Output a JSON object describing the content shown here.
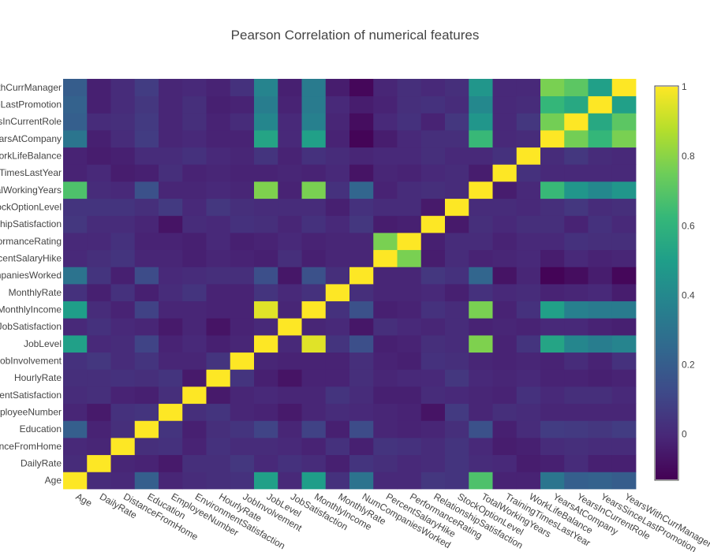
{
  "chart_data": {
    "type": "heatmap",
    "title": "Pearson Correlation of numerical features",
    "xlabel": "",
    "ylabel": "",
    "colorscale": "viridis",
    "zmin": -0.13,
    "zmax": 1,
    "colorbar_ticks": [
      0,
      0.2,
      0.4,
      0.6,
      0.8,
      1
    ],
    "colorbar_tick_labels": [
      "0",
      "0.2",
      "0.4",
      "0.6",
      "0.8",
      "1"
    ],
    "features": [
      "Age",
      "DailyRate",
      "DistanceFromHome",
      "Education",
      "EmployeeNumber",
      "EnvironmentSatisfaction",
      "HourlyRate",
      "JobInvolvement",
      "JobLevel",
      "JobSatisfaction",
      "MonthlyIncome",
      "MonthlyRate",
      "NumCompaniesWorked",
      "PercentSalaryHike",
      "PerformanceRating",
      "RelationshipSatisfaction",
      "StockOptionLevel",
      "TotalWorkingYears",
      "TrainingTimesLastYear",
      "WorkLifeBalance",
      "YearsAtCompany",
      "YearsInCurrentRole",
      "YearsSinceLastPromotion",
      "YearsWithCurrManager"
    ],
    "y_tick_labels": [
      "Age",
      "DailyRate",
      "DistanceFromHome",
      "Education",
      "EmployeeNumber",
      "EnvironmentSatisfaction",
      "HourlyRate",
      "JobInvolvement",
      "JobLevel",
      "JobSatisfaction",
      "MonthlyIncome",
      "MonthlyRate",
      "NumCompaniesWorked",
      "PercentSalaryHike",
      "PerformanceRating",
      "RelationshipSatisfaction",
      "StockOptionLevel",
      "TotalWorkingYears",
      "TrainingTimesLastYear",
      "WorkLifeBalance",
      "YearsAtCompany",
      "YearsInCurrentRole",
      "YearsSinceLastPromotion",
      "YearsWithCurrManager"
    ],
    "z": [
      [
        1.0,
        0.01,
        0.0,
        0.21,
        -0.01,
        0.01,
        0.02,
        0.03,
        0.51,
        0.0,
        0.5,
        0.03,
        0.3,
        0.0,
        0.0,
        0.05,
        0.04,
        0.68,
        -0.02,
        -0.02,
        0.31,
        0.21,
        0.22,
        0.2
      ],
      [
        0.01,
        1.0,
        -0.01,
        -0.02,
        -0.05,
        0.02,
        0.02,
        0.05,
        0.0,
        0.03,
        0.01,
        -0.03,
        0.04,
        0.02,
        0.0,
        0.01,
        0.04,
        0.01,
        0.0,
        -0.04,
        -0.03,
        0.01,
        -0.03,
        -0.03
      ],
      [
        0.0,
        -0.01,
        1.0,
        0.02,
        0.03,
        -0.02,
        0.03,
        0.01,
        0.01,
        0.0,
        -0.02,
        0.03,
        -0.03,
        0.04,
        0.03,
        0.01,
        0.04,
        0.0,
        -0.04,
        -0.03,
        0.01,
        0.02,
        0.01,
        0.01
      ],
      [
        0.21,
        -0.02,
        0.02,
        1.0,
        0.04,
        -0.03,
        0.02,
        0.04,
        0.1,
        -0.01,
        0.09,
        -0.03,
        0.13,
        -0.01,
        -0.02,
        -0.01,
        0.02,
        0.15,
        -0.03,
        0.01,
        0.07,
        0.06,
        0.05,
        0.07
      ],
      [
        -0.01,
        -0.05,
        0.03,
        0.04,
        1.0,
        0.02,
        0.04,
        -0.01,
        -0.02,
        -0.05,
        -0.01,
        0.01,
        0.0,
        -0.01,
        -0.02,
        -0.07,
        0.06,
        -0.01,
        0.02,
        0.01,
        -0.01,
        -0.01,
        -0.01,
        -0.01
      ],
      [
        0.01,
        0.02,
        -0.02,
        -0.03,
        0.02,
        1.0,
        -0.05,
        -0.01,
        0.0,
        -0.01,
        -0.01,
        0.04,
        0.01,
        -0.03,
        -0.03,
        0.01,
        0.0,
        -0.01,
        -0.02,
        0.03,
        0.0,
        0.02,
        0.02,
        0.0
      ],
      [
        0.02,
        0.02,
        0.03,
        0.02,
        0.04,
        -0.05,
        1.0,
        0.04,
        -0.03,
        -0.07,
        -0.02,
        -0.02,
        0.02,
        -0.01,
        0.0,
        0.0,
        0.05,
        0.0,
        -0.01,
        0.0,
        -0.02,
        -0.02,
        -0.03,
        -0.02
      ],
      [
        0.03,
        0.05,
        0.01,
        0.04,
        -0.01,
        -0.01,
        0.04,
        1.0,
        -0.01,
        -0.02,
        -0.02,
        -0.02,
        0.02,
        -0.02,
        -0.03,
        0.03,
        0.02,
        -0.01,
        -0.02,
        -0.01,
        -0.02,
        0.01,
        -0.02,
        0.03
      ],
      [
        0.51,
        0.0,
        0.01,
        0.1,
        -0.02,
        0.0,
        -0.03,
        -0.01,
        1.0,
        0.0,
        0.95,
        0.04,
        0.14,
        -0.03,
        -0.02,
        0.02,
        0.01,
        0.78,
        -0.02,
        0.04,
        0.53,
        0.39,
        0.35,
        0.38
      ],
      [
        0.0,
        0.03,
        0.0,
        -0.01,
        -0.05,
        -0.01,
        -0.07,
        -0.02,
        0.0,
        1.0,
        -0.01,
        0.0,
        -0.06,
        0.02,
        0.0,
        -0.01,
        0.01,
        -0.02,
        -0.01,
        -0.02,
        0.0,
        0.0,
        -0.02,
        -0.03
      ],
      [
        0.5,
        0.01,
        -0.02,
        0.09,
        -0.01,
        -0.01,
        -0.02,
        -0.02,
        0.95,
        -0.01,
        1.0,
        0.03,
        0.15,
        -0.03,
        -0.02,
        0.03,
        0.01,
        0.77,
        -0.02,
        0.03,
        0.51,
        0.36,
        0.34,
        0.34
      ],
      [
        0.03,
        -0.03,
        0.03,
        -0.03,
        0.01,
        0.04,
        -0.02,
        -0.02,
        0.04,
        0.0,
        0.03,
        1.0,
        0.02,
        -0.01,
        -0.01,
        -0.0,
        -0.03,
        0.03,
        0.0,
        0.01,
        -0.02,
        -0.01,
        0.0,
        -0.04
      ],
      [
        0.3,
        0.04,
        -0.03,
        0.13,
        0.0,
        0.01,
        0.02,
        0.02,
        0.14,
        -0.06,
        0.15,
        0.02,
        1.0,
        -0.01,
        -0.01,
        0.05,
        0.03,
        0.24,
        -0.07,
        -0.01,
        -0.12,
        -0.09,
        -0.04,
        -0.11
      ],
      [
        0.0,
        0.02,
        0.04,
        -0.01,
        -0.01,
        -0.03,
        -0.01,
        -0.02,
        -0.03,
        0.02,
        -0.03,
        -0.01,
        -0.01,
        1.0,
        0.77,
        -0.04,
        0.01,
        -0.02,
        -0.01,
        0.0,
        -0.04,
        0.0,
        -0.02,
        -0.01
      ],
      [
        0.0,
        0.0,
        0.03,
        -0.02,
        -0.02,
        -0.03,
        0.0,
        -0.03,
        -0.02,
        0.0,
        -0.02,
        -0.01,
        -0.01,
        0.77,
        1.0,
        -0.03,
        0.01,
        0.01,
        -0.02,
        0.0,
        0.0,
        0.03,
        0.02,
        0.02
      ],
      [
        0.05,
        0.01,
        0.01,
        -0.01,
        -0.07,
        0.01,
        0.0,
        0.03,
        0.02,
        -0.01,
        0.03,
        -0.0,
        0.05,
        -0.04,
        -0.03,
        1.0,
        -0.05,
        0.02,
        0.0,
        0.02,
        0.02,
        -0.02,
        0.03,
        -0.0
      ],
      [
        0.04,
        0.04,
        0.04,
        0.02,
        0.06,
        0.0,
        0.05,
        0.02,
        0.01,
        0.01,
        0.01,
        -0.03,
        0.03,
        0.01,
        0.01,
        -0.05,
        1.0,
        0.01,
        0.01,
        0.0,
        0.02,
        0.05,
        0.01,
        0.02
      ],
      [
        0.68,
        0.01,
        0.0,
        0.15,
        -0.01,
        -0.01,
        0.0,
        -0.01,
        0.78,
        -0.02,
        0.77,
        0.03,
        0.24,
        -0.02,
        0.01,
        0.02,
        0.01,
        1.0,
        -0.04,
        0.0,
        0.63,
        0.46,
        0.4,
        0.46
      ],
      [
        -0.02,
        0.0,
        -0.04,
        -0.03,
        0.02,
        -0.02,
        -0.01,
        -0.02,
        -0.02,
        -0.01,
        -0.02,
        0.0,
        -0.07,
        -0.01,
        -0.02,
        0.0,
        0.01,
        -0.04,
        1.0,
        0.03,
        0.0,
        0.0,
        0.0,
        0.0
      ],
      [
        -0.02,
        -0.04,
        -0.03,
        0.01,
        0.01,
        0.03,
        0.0,
        -0.01,
        0.04,
        -0.02,
        0.03,
        0.01,
        -0.01,
        0.0,
        0.0,
        0.02,
        0.0,
        0.0,
        0.03,
        1.0,
        0.01,
        0.05,
        0.01,
        0.0
      ],
      [
        0.31,
        -0.03,
        0.01,
        0.07,
        -0.01,
        0.0,
        -0.02,
        -0.02,
        0.53,
        0.0,
        0.51,
        -0.02,
        -0.12,
        -0.04,
        0.0,
        0.02,
        0.02,
        0.63,
        0.0,
        0.01,
        1.0,
        0.76,
        0.62,
        0.77
      ],
      [
        0.21,
        0.01,
        0.02,
        0.06,
        -0.01,
        0.02,
        -0.02,
        0.01,
        0.39,
        0.0,
        0.36,
        -0.01,
        -0.09,
        0.0,
        0.03,
        -0.02,
        0.05,
        0.46,
        0.0,
        0.05,
        0.76,
        1.0,
        0.55,
        0.71
      ],
      [
        0.22,
        -0.03,
        0.01,
        0.05,
        -0.01,
        0.02,
        -0.03,
        -0.02,
        0.35,
        -0.02,
        0.34,
        0.0,
        -0.04,
        -0.02,
        0.02,
        0.03,
        0.01,
        0.4,
        0.0,
        0.01,
        0.62,
        0.55,
        1.0,
        0.51
      ],
      [
        0.2,
        -0.03,
        0.01,
        0.07,
        -0.01,
        0.0,
        -0.02,
        0.03,
        0.38,
        -0.03,
        0.34,
        -0.04,
        -0.11,
        -0.01,
        0.02,
        -0.0,
        0.02,
        0.46,
        0.0,
        0.0,
        0.77,
        0.71,
        0.51,
        1.0
      ]
    ]
  }
}
